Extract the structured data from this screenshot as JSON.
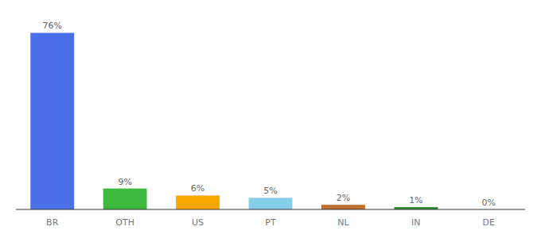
{
  "chart_data": {
    "type": "bar",
    "categories": [
      "BR",
      "OTH",
      "US",
      "PT",
      "NL",
      "IN",
      "DE"
    ],
    "values": [
      76,
      9,
      6,
      5,
      2,
      1,
      0
    ],
    "value_labels": [
      "76%",
      "9%",
      "6%",
      "5%",
      "2%",
      "1%",
      "0%"
    ],
    "colors": [
      "#4a6fe8",
      "#3dba3d",
      "#f5a800",
      "#87ceeb",
      "#c07030",
      "#2e8b2e",
      "#cccccc"
    ],
    "ylim": [
      0,
      84
    ],
    "data_labels": true,
    "tick_labels": "x"
  }
}
